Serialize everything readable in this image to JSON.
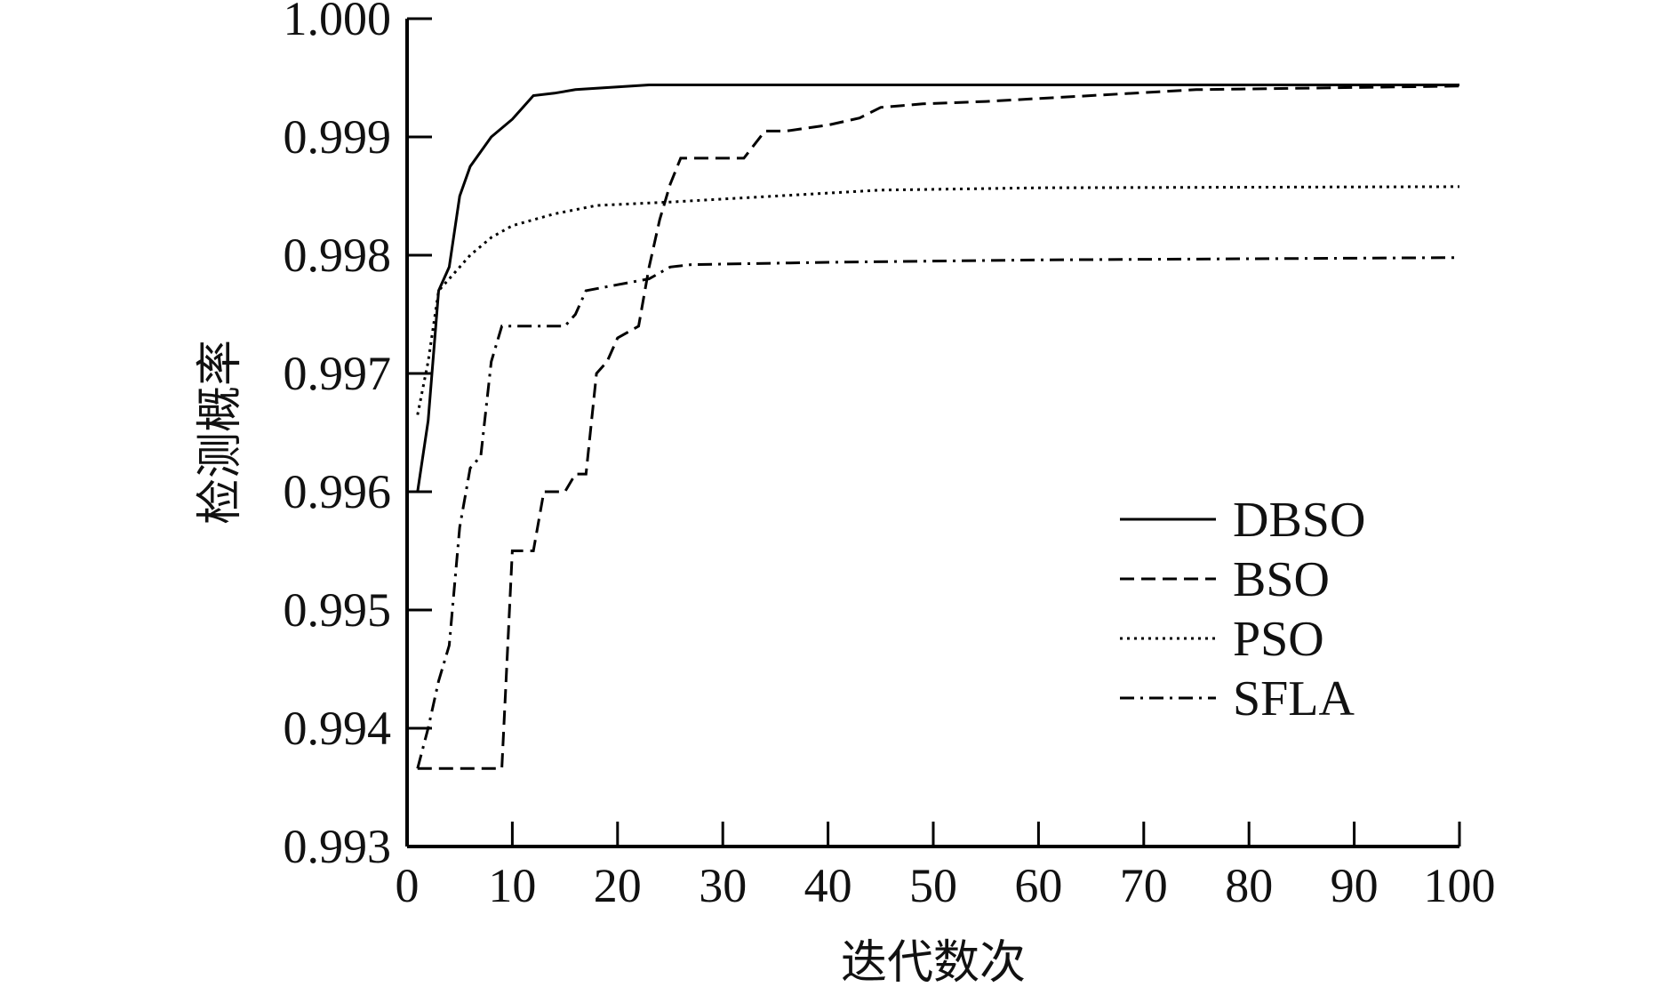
{
  "chart_data": {
    "type": "line",
    "title": "",
    "xlabel": "迭代数次",
    "ylabel": "检测概率",
    "xlim": [
      0,
      100
    ],
    "ylim": [
      0.993,
      1.0
    ],
    "xticks": [
      "0",
      "10",
      "20",
      "30",
      "40",
      "50",
      "60",
      "70",
      "80",
      "90",
      "100"
    ],
    "yticks": [
      "0.993",
      "0.994",
      "0.995",
      "0.996",
      "0.997",
      "0.998",
      "0.999",
      "1.000"
    ],
    "grid": false,
    "legend_position": "center-right",
    "series": [
      {
        "name": "DBSO",
        "style": "solid",
        "x": [
          1,
          2,
          3,
          4,
          5,
          6,
          8,
          10,
          12,
          14,
          16,
          23,
          100
        ],
        "y": [
          0.996,
          0.9966,
          0.9977,
          0.9979,
          0.9985,
          0.99875,
          0.999,
          0.99915,
          0.99935,
          0.99937,
          0.9994,
          0.99944,
          0.99944
        ]
      },
      {
        "name": "BSO",
        "style": "dashed",
        "x": [
          1,
          9,
          10,
          12,
          13,
          15,
          16,
          17,
          18,
          19,
          20,
          22,
          23,
          24,
          25,
          26,
          32,
          34,
          36,
          40,
          43,
          45,
          49,
          55,
          65,
          75,
          100
        ],
        "y": [
          0.99366,
          0.99366,
          0.9955,
          0.9955,
          0.996,
          0.996,
          0.99615,
          0.99615,
          0.997,
          0.9971,
          0.9973,
          0.9974,
          0.9979,
          0.9983,
          0.9986,
          0.99882,
          0.99882,
          0.99905,
          0.99905,
          0.9991,
          0.99916,
          0.99925,
          0.99928,
          0.9993,
          0.99935,
          0.9994,
          0.99943
        ]
      },
      {
        "name": "PSO",
        "style": "dotted",
        "x": [
          1,
          2,
          3,
          4,
          6,
          8,
          10,
          14,
          18,
          25,
          35,
          45,
          60,
          100
        ],
        "y": [
          0.99665,
          0.9971,
          0.9977,
          0.9978,
          0.998,
          0.99815,
          0.99825,
          0.99835,
          0.99842,
          0.99845,
          0.9985,
          0.99855,
          0.99857,
          0.99858
        ]
      },
      {
        "name": "SFLA",
        "style": "dashdot",
        "x": [
          1,
          2,
          3,
          4,
          5,
          6,
          7,
          8,
          9,
          15,
          16,
          17,
          20,
          23,
          25,
          27,
          40,
          60,
          100
        ],
        "y": [
          0.99366,
          0.994,
          0.9944,
          0.9947,
          0.9957,
          0.9962,
          0.9963,
          0.9971,
          0.9974,
          0.9974,
          0.9975,
          0.9977,
          0.99775,
          0.9978,
          0.9979,
          0.99792,
          0.99794,
          0.99796,
          0.99798
        ]
      }
    ]
  }
}
